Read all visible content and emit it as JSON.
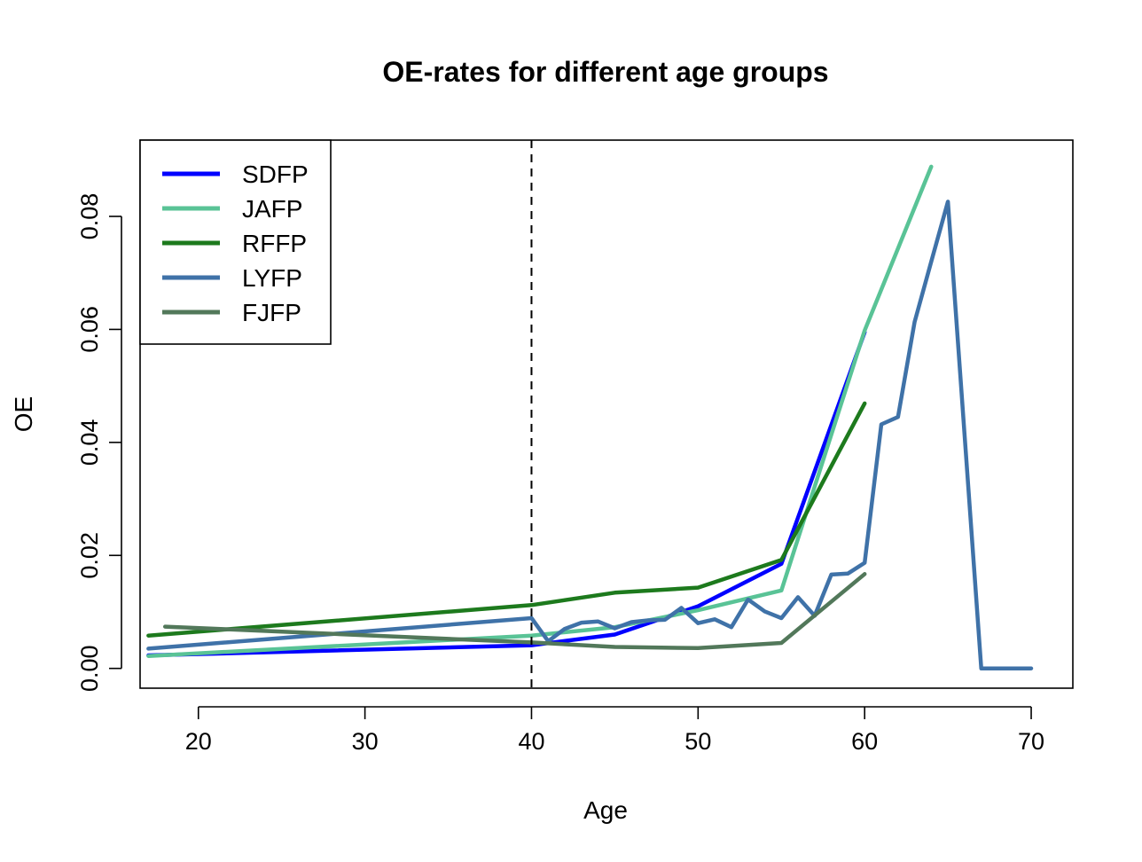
{
  "chart_data": {
    "type": "line",
    "title": "OE-rates for different age groups",
    "xlabel": "Age",
    "ylabel": "OE",
    "xlim": [
      16.5,
      72.5
    ],
    "ylim": [
      -0.0035,
      0.0935
    ],
    "x_ticks": [
      20,
      30,
      40,
      50,
      60,
      70
    ],
    "x_tick_labels": [
      "20",
      "30",
      "40",
      "50",
      "60",
      "70"
    ],
    "y_ticks": [
      0,
      0.02,
      0.04,
      0.06,
      0.08
    ],
    "y_tick_labels": [
      "0.00",
      "0.02",
      "0.04",
      "0.06",
      "0.08"
    ],
    "legend_position": "top-left",
    "vline": {
      "x": 40,
      "style": "dashed"
    },
    "series": [
      {
        "name": "SDFP",
        "color": "#0000ff",
        "x": [
          17,
          40,
          45,
          50,
          55,
          60
        ],
        "y": [
          0.0023,
          0.0041,
          0.006,
          0.011,
          0.0185,
          0.0595
        ]
      },
      {
        "name": "JAFP",
        "color": "#59c396",
        "x": [
          17,
          40,
          45,
          50,
          55,
          60,
          64
        ],
        "y": [
          0.0022,
          0.0058,
          0.0073,
          0.0103,
          0.0138,
          0.0598,
          0.0888
        ]
      },
      {
        "name": "RFFP",
        "color": "#1d7a1d",
        "x": [
          17,
          40,
          45,
          50,
          55,
          60
        ],
        "y": [
          0.0058,
          0.0112,
          0.0134,
          0.0143,
          0.0192,
          0.0469
        ]
      },
      {
        "name": "LYFP",
        "color": "#3f72a8",
        "x": [
          17,
          40,
          41,
          42,
          43,
          44,
          45,
          46,
          47,
          48,
          49,
          50,
          51,
          52,
          53,
          54,
          55,
          56,
          57,
          58,
          59,
          60,
          61,
          62,
          63,
          64,
          65,
          67,
          68,
          69,
          70
        ],
        "y": [
          0.0035,
          0.0089,
          0.0048,
          0.007,
          0.0081,
          0.0083,
          0.0071,
          0.0082,
          0.0085,
          0.0086,
          0.0107,
          0.008,
          0.0087,
          0.0073,
          0.0122,
          0.0101,
          0.0089,
          0.0126,
          0.0093,
          0.0166,
          0.0168,
          0.0187,
          0.0432,
          0.0445,
          0.0613,
          0.072,
          0.0826,
          0.0,
          0.0,
          0.0,
          0.0
        ]
      },
      {
        "name": "FJFP",
        "color": "#52785a",
        "x": [
          18,
          40,
          45,
          50,
          55,
          60
        ],
        "y": [
          0.0074,
          0.0046,
          0.0038,
          0.0036,
          0.0045,
          0.0167
        ]
      }
    ]
  }
}
